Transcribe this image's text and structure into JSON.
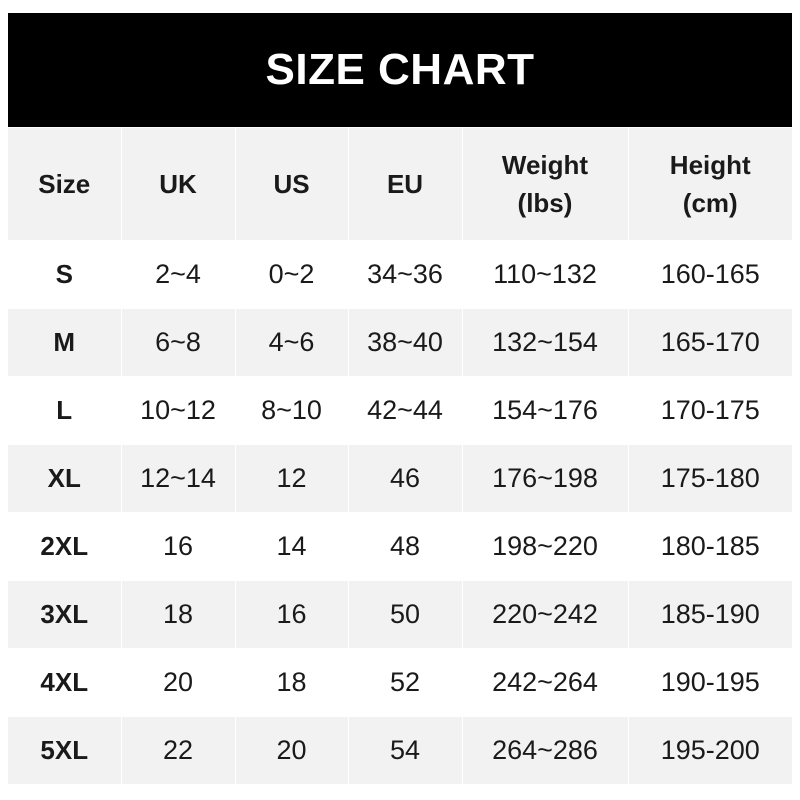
{
  "title": "SIZE CHART",
  "table": {
    "headers": [
      {
        "line1": "Size",
        "line2": ""
      },
      {
        "line1": "UK",
        "line2": ""
      },
      {
        "line1": "US",
        "line2": ""
      },
      {
        "line1": "EU",
        "line2": ""
      },
      {
        "line1": "Weight",
        "line2": "(lbs)"
      },
      {
        "line1": "Height",
        "line2": "(cm)"
      }
    ],
    "rows": [
      [
        "S",
        "2~4",
        "0~2",
        "34~36",
        "110~132",
        "160-165"
      ],
      [
        "M",
        "6~8",
        "4~6",
        "38~40",
        "132~154",
        "165-170"
      ],
      [
        "L",
        "10~12",
        "8~10",
        "42~44",
        "154~176",
        "170-175"
      ],
      [
        "XL",
        "12~14",
        "12",
        "46",
        "176~198",
        "175-180"
      ],
      [
        "2XL",
        "16",
        "14",
        "48",
        "198~220",
        "180-185"
      ],
      [
        "3XL",
        "18",
        "16",
        "50",
        "220~242",
        "185-190"
      ],
      [
        "4XL",
        "20",
        "18",
        "52",
        "242~264",
        "190-195"
      ],
      [
        "5XL",
        "22",
        "20",
        "54",
        "264~286",
        "195-200"
      ]
    ]
  },
  "colors": {
    "header_band": "#000000",
    "stripe": "#f2f2f2",
    "text": "#1a1a1a"
  }
}
